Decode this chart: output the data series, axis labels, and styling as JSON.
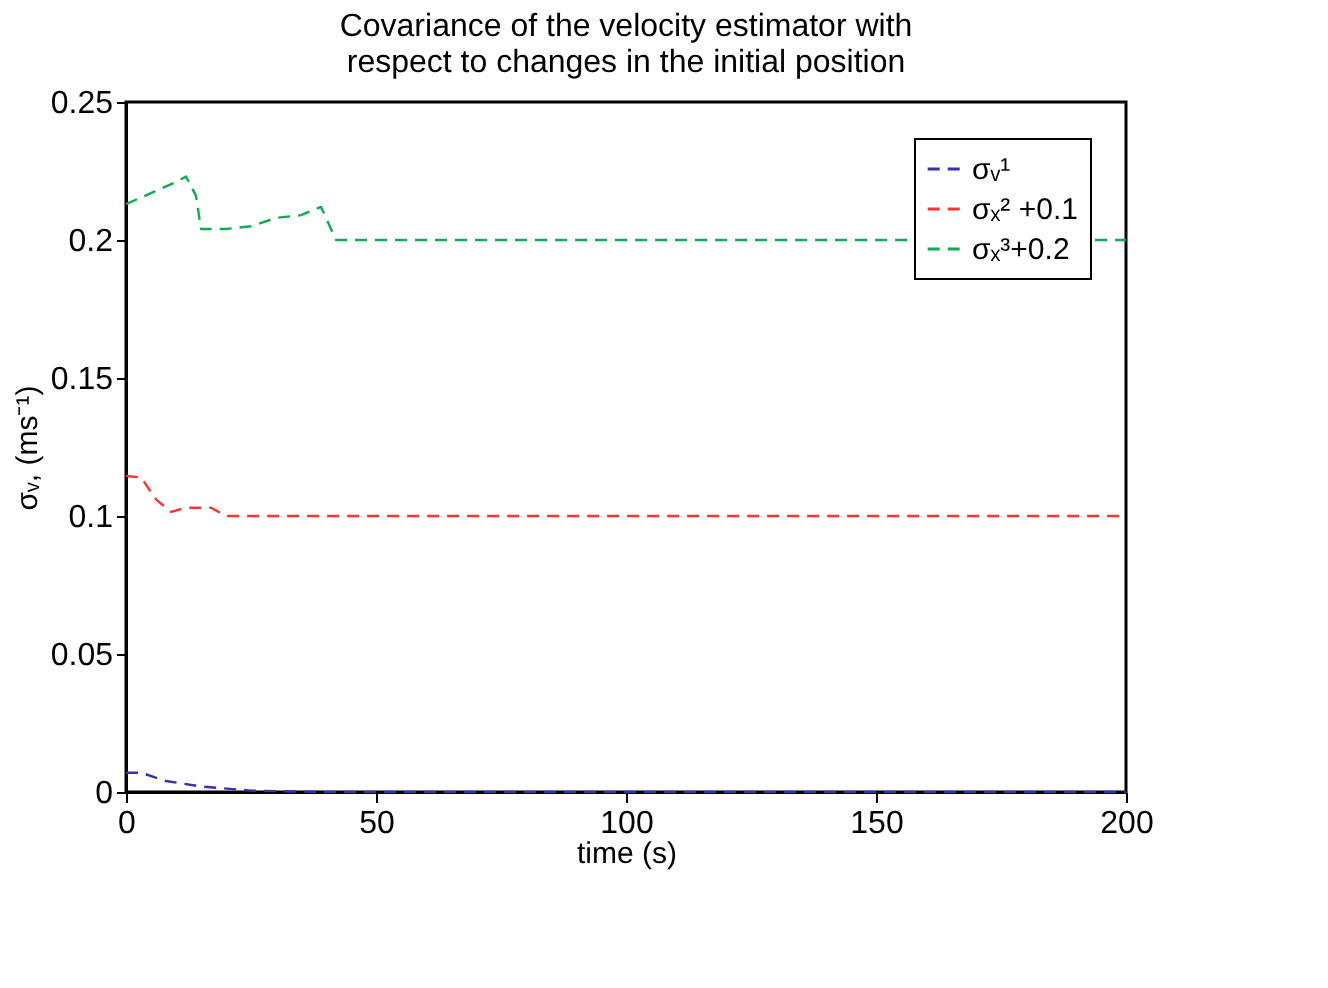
{
  "chart_data": {
    "type": "line",
    "title": [
      "Covariance of the velocity estimator with",
      "respect to changes in the initial position"
    ],
    "xlabel": "time (s)",
    "ylabel": "σᵥ, (ms⁻¹)",
    "xlim": [
      0,
      200
    ],
    "ylim": [
      0,
      0.25
    ],
    "xticks": [
      0,
      50,
      100,
      150,
      200
    ],
    "yticks": [
      0,
      0.05,
      0.1,
      0.15,
      0.2,
      0.25
    ],
    "grid": false,
    "legend": "top right",
    "line_style": "dashed",
    "marker": "none",
    "series": [
      {
        "name": "σᵥ¹",
        "color": "#3333aa",
        "x": [
          0,
          3,
          8,
          15,
          25,
          40,
          100,
          200
        ],
        "values": [
          0.007,
          0.007,
          0.004,
          0.002,
          0.0005,
          0,
          0,
          0
        ]
      },
      {
        "name": "σₓ² +0.1",
        "color": "#ff3333",
        "x": [
          0,
          3,
          6,
          9,
          12,
          17,
          20,
          50,
          100,
          200
        ],
        "values": [
          0.1145,
          0.114,
          0.106,
          0.1015,
          0.103,
          0.103,
          0.1,
          0.1,
          0.1,
          0.1
        ]
      },
      {
        "name": "σₓ³+0.2",
        "color": "#11aa55",
        "x": [
          0,
          5,
          10,
          12,
          14,
          15,
          20,
          25,
          30,
          35,
          39,
          42,
          50,
          100,
          200
        ],
        "values": [
          0.213,
          0.217,
          0.221,
          0.223,
          0.216,
          0.204,
          0.204,
          0.205,
          0.208,
          0.209,
          0.212,
          0.2,
          0.2,
          0.2,
          0.2
        ]
      }
    ]
  }
}
